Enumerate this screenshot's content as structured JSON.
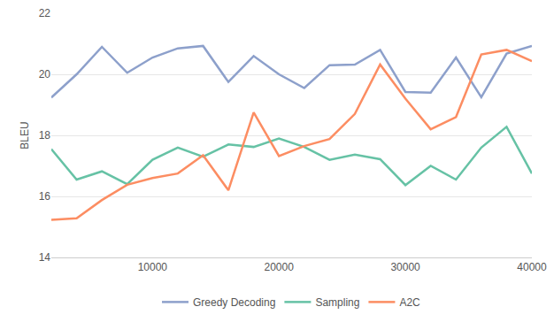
{
  "chart_data": {
    "type": "line",
    "y_label": "BLEU",
    "x": [
      2000,
      4000,
      6000,
      8000,
      10000,
      12000,
      14000,
      16000,
      18000,
      20000,
      22000,
      24000,
      26000,
      28000,
      30000,
      32000,
      34000,
      36000,
      38000,
      40000
    ],
    "series": [
      {
        "name": "Greedy Decoding",
        "color": "#8da0cb",
        "values": [
          19.24,
          20.0,
          20.9,
          20.05,
          20.55,
          20.85,
          20.93,
          19.75,
          20.6,
          20.0,
          19.55,
          20.3,
          20.32,
          20.8,
          19.42,
          19.4,
          20.55,
          19.25,
          20.68,
          20.93
        ]
      },
      {
        "name": "Sampling",
        "color": "#66c2a5",
        "values": [
          17.55,
          16.55,
          16.82,
          16.4,
          17.2,
          17.6,
          17.3,
          17.7,
          17.62,
          17.9,
          17.62,
          17.2,
          17.37,
          17.22,
          16.37,
          17.0,
          16.55,
          17.6,
          18.28,
          16.75
        ]
      },
      {
        "name": "A2C",
        "color": "#fc8d62",
        "values": [
          15.23,
          15.28,
          15.88,
          16.38,
          16.6,
          16.75,
          17.35,
          16.2,
          18.75,
          17.32,
          17.65,
          17.88,
          18.7,
          20.32,
          19.2,
          18.2,
          18.6,
          20.65,
          20.8,
          20.43
        ]
      }
    ],
    "xlim": [
      2000,
      40000
    ],
    "xticks": [
      10000,
      20000,
      30000,
      40000
    ],
    "ylim": [
      14,
      22
    ],
    "yticks": [
      14,
      16,
      18,
      20,
      22
    ],
    "grid": true,
    "legend": "bottom"
  }
}
